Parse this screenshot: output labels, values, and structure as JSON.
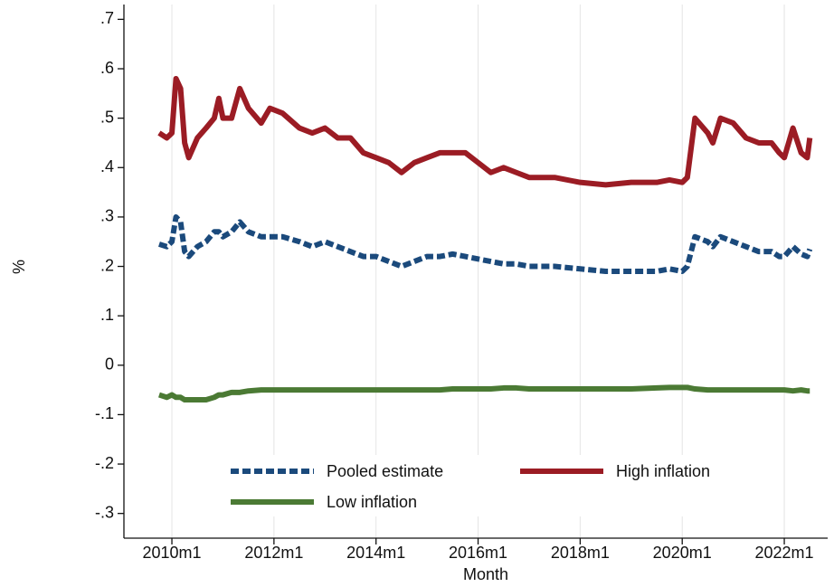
{
  "chart_data": {
    "type": "line",
    "xlabel": "Month",
    "ylabel": "%",
    "x": [
      2009.75,
      2009.9,
      2010.0,
      2010.08,
      2010.17,
      2010.25,
      2010.33,
      2010.5,
      2010.67,
      2010.83,
      2010.92,
      2011.0,
      2011.17,
      2011.33,
      2011.5,
      2011.75,
      2011.92,
      2012.17,
      2012.5,
      2012.75,
      2013.0,
      2013.25,
      2013.5,
      2013.75,
      2014.0,
      2014.25,
      2014.5,
      2014.75,
      2015.0,
      2015.25,
      2015.5,
      2015.75,
      2016.0,
      2016.25,
      2016.5,
      2016.75,
      2017.0,
      2017.5,
      2018.0,
      2018.5,
      2019.0,
      2019.5,
      2019.75,
      2020.0,
      2020.1,
      2020.25,
      2020.5,
      2020.6,
      2020.75,
      2021.0,
      2021.25,
      2021.5,
      2021.75,
      2021.9,
      2022.0,
      2022.17,
      2022.33,
      2022.45,
      2022.5
    ],
    "series": [
      {
        "name": "Pooled estimate",
        "color": "#1b4a7c",
        "dash": true,
        "values": [
          0.245,
          0.24,
          0.25,
          0.3,
          0.29,
          0.23,
          0.22,
          0.24,
          0.25,
          0.27,
          0.27,
          0.26,
          0.27,
          0.29,
          0.27,
          0.26,
          0.26,
          0.26,
          0.25,
          0.24,
          0.25,
          0.24,
          0.23,
          0.22,
          0.22,
          0.21,
          0.2,
          0.21,
          0.22,
          0.22,
          0.225,
          0.22,
          0.215,
          0.21,
          0.205,
          0.205,
          0.2,
          0.2,
          0.195,
          0.19,
          0.19,
          0.19,
          0.195,
          0.19,
          0.2,
          0.26,
          0.25,
          0.24,
          0.26,
          0.25,
          0.24,
          0.23,
          0.23,
          0.22,
          0.22,
          0.24,
          0.225,
          0.22,
          0.235
        ]
      },
      {
        "name": "High inflation",
        "color": "#9b1c24",
        "dash": false,
        "values": [
          0.47,
          0.46,
          0.47,
          0.58,
          0.56,
          0.45,
          0.42,
          0.46,
          0.48,
          0.5,
          0.54,
          0.5,
          0.5,
          0.56,
          0.52,
          0.49,
          0.52,
          0.51,
          0.48,
          0.47,
          0.48,
          0.46,
          0.46,
          0.43,
          0.42,
          0.41,
          0.39,
          0.41,
          0.42,
          0.43,
          0.43,
          0.43,
          0.41,
          0.39,
          0.4,
          0.39,
          0.38,
          0.38,
          0.37,
          0.365,
          0.37,
          0.37,
          0.375,
          0.37,
          0.38,
          0.5,
          0.47,
          0.45,
          0.5,
          0.49,
          0.46,
          0.45,
          0.45,
          0.43,
          0.42,
          0.48,
          0.43,
          0.42,
          0.46
        ]
      },
      {
        "name": "Low inflation",
        "color": "#4b7a34",
        "dash": false,
        "values": [
          -0.06,
          -0.065,
          -0.06,
          -0.065,
          -0.065,
          -0.07,
          -0.07,
          -0.07,
          -0.07,
          -0.065,
          -0.06,
          -0.06,
          -0.055,
          -0.055,
          -0.052,
          -0.05,
          -0.05,
          -0.05,
          -0.05,
          -0.05,
          -0.05,
          -0.05,
          -0.05,
          -0.05,
          -0.05,
          -0.05,
          -0.05,
          -0.05,
          -0.05,
          -0.05,
          -0.048,
          -0.048,
          -0.048,
          -0.048,
          -0.046,
          -0.046,
          -0.048,
          -0.048,
          -0.048,
          -0.048,
          -0.048,
          -0.046,
          -0.045,
          -0.045,
          -0.045,
          -0.048,
          -0.05,
          -0.05,
          -0.05,
          -0.05,
          -0.05,
          -0.05,
          -0.05,
          -0.05,
          -0.05,
          -0.052,
          -0.05,
          -0.052,
          -0.052
        ]
      }
    ],
    "xlim": [
      2009.06,
      2022.85
    ],
    "xticks": [
      {
        "value": 2010,
        "label": "2010m1"
      },
      {
        "value": 2012,
        "label": "2012m1"
      },
      {
        "value": 2014,
        "label": "2014m1"
      },
      {
        "value": 2016,
        "label": "2016m1"
      },
      {
        "value": 2018,
        "label": "2018m1"
      },
      {
        "value": 2020,
        "label": "2020m1"
      },
      {
        "value": 2022,
        "label": "2022m1"
      }
    ],
    "ylim": [
      -0.35,
      0.73
    ],
    "yticks": [
      {
        "value": -0.3,
        "label": "-.3"
      },
      {
        "value": -0.2,
        "label": "-.2"
      },
      {
        "value": -0.1,
        "label": "-.1"
      },
      0,
      {
        "value": 0.1,
        "label": ".1"
      },
      {
        "value": 0.2,
        "label": ".2"
      },
      {
        "value": 0.3,
        "label": ".3"
      },
      {
        "value": 0.4,
        "label": ".4"
      },
      {
        "value": 0.5,
        "label": ".5"
      },
      {
        "value": 0.6,
        "label": ".6"
      },
      {
        "value": 0.7,
        "label": ".7"
      }
    ],
    "grid": "x"
  }
}
